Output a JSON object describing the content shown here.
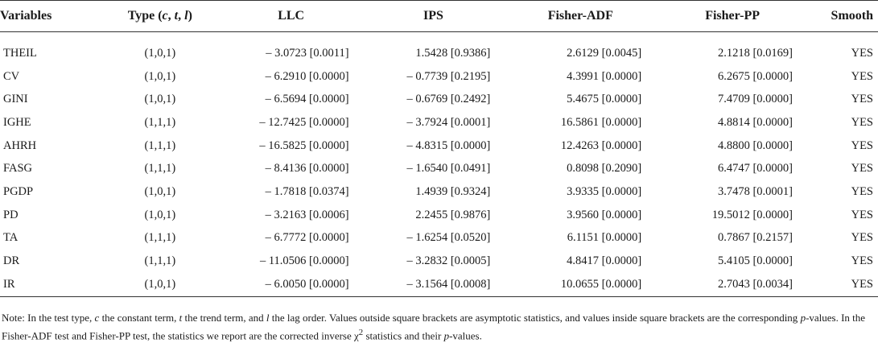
{
  "table": {
    "headers": {
      "variables": "Variables",
      "type_prefix": "Type (",
      "type_c": "c",
      "type_t": "t",
      "type_l": "l",
      "type_suffix": ")",
      "llc": "LLC",
      "ips": "IPS",
      "fisher_adf": "Fisher-ADF",
      "fisher_pp": "Fisher-PP",
      "smooth": "Smooth"
    },
    "rows": [
      {
        "variable": "THEIL",
        "type": "(1,0,1)",
        "llc": "– 3.0723 [0.0011]",
        "ips": "1.5428 [0.9386]",
        "fisher_adf": "2.6129 [0.0045]",
        "fisher_pp": "2.1218 [0.0169]",
        "smooth": "YES"
      },
      {
        "variable": "CV",
        "type": "(1,0,1)",
        "llc": "– 6.2910 [0.0000]",
        "ips": "– 0.7739 [0.2195]",
        "fisher_adf": "4.3991 [0.0000]",
        "fisher_pp": "6.2675 [0.0000]",
        "smooth": "YES"
      },
      {
        "variable": "GINI",
        "type": "(1,0,1)",
        "llc": "– 6.5694 [0.0000]",
        "ips": "– 0.6769 [0.2492]",
        "fisher_adf": "5.4675 [0.0000]",
        "fisher_pp": "7.4709 [0.0000]",
        "smooth": "YES"
      },
      {
        "variable": "IGHE",
        "type": "(1,1,1)",
        "llc": "– 12.7425 [0.0000]",
        "ips": "– 3.7924 [0.0001]",
        "fisher_adf": "16.5861 [0.0000]",
        "fisher_pp": "4.8814 [0.0000]",
        "smooth": "YES"
      },
      {
        "variable": "AHRH",
        "type": "(1,1,1)",
        "llc": "– 16.5825 [0.0000]",
        "ips": "– 4.8315 [0.0000]",
        "fisher_adf": "12.4263 [0.0000]",
        "fisher_pp": "4.8800 [0.0000]",
        "smooth": "YES"
      },
      {
        "variable": "FASG",
        "type": "(1,1,1)",
        "llc": "– 8.4136 [0.0000]",
        "ips": "– 1.6540 [0.0491]",
        "fisher_adf": "0.8098 [0.2090]",
        "fisher_pp": "6.4747 [0.0000]",
        "smooth": "YES"
      },
      {
        "variable": "PGDP",
        "type": "(1,0,1)",
        "llc": "– 1.7818 [0.0374]",
        "ips": "1.4939 [0.9324]",
        "fisher_adf": "3.9335 [0.0000]",
        "fisher_pp": "3.7478 [0.0001]",
        "smooth": "YES"
      },
      {
        "variable": "PD",
        "type": "(1,0,1)",
        "llc": "– 3.2163 [0.0006]",
        "ips": "2.2455 [0.9876]",
        "fisher_adf": "3.9560 [0.0000]",
        "fisher_pp": "19.5012 [0.0000]",
        "smooth": "YES"
      },
      {
        "variable": "TA",
        "type": "(1,1,1)",
        "llc": "– 6.7772 [0.0000]",
        "ips": "– 1.6254 [0.0520]",
        "fisher_adf": "6.1151 [0.0000]",
        "fisher_pp": "0.7867 [0.2157]",
        "smooth": "YES"
      },
      {
        "variable": "DR",
        "type": "(1,1,1)",
        "llc": "– 11.0506 [0.0000]",
        "ips": "– 3.2832 [0.0005]",
        "fisher_adf": "4.8417 [0.0000]",
        "fisher_pp": "5.4105 [0.0000]",
        "smooth": "YES"
      },
      {
        "variable": "IR",
        "type": "(1,0,1)",
        "llc": "– 6.0050 [0.0000]",
        "ips": "– 3.1564 [0.0008]",
        "fisher_adf": "10.0655 [0.0000]",
        "fisher_pp": "2.7043 [0.0034]",
        "smooth": "YES"
      }
    ]
  },
  "note": {
    "p1": "Note: In the test type, ",
    "c": "c",
    "p2": " the constant term, ",
    "t": "t",
    "p3": " the trend term, and ",
    "l": "l",
    "p4": " the lag order. Values outside square brackets are asymptotic statistics, and values inside square brackets are the corresponding ",
    "p_italic_1": "p",
    "p5": "-values. In the Fisher-ADF test and Fisher-PP test, the statistics we report are the corrected inverse χ",
    "sup": "2",
    "p6": " statistics and their ",
    "p_italic_2": "p",
    "p7": "-values."
  }
}
